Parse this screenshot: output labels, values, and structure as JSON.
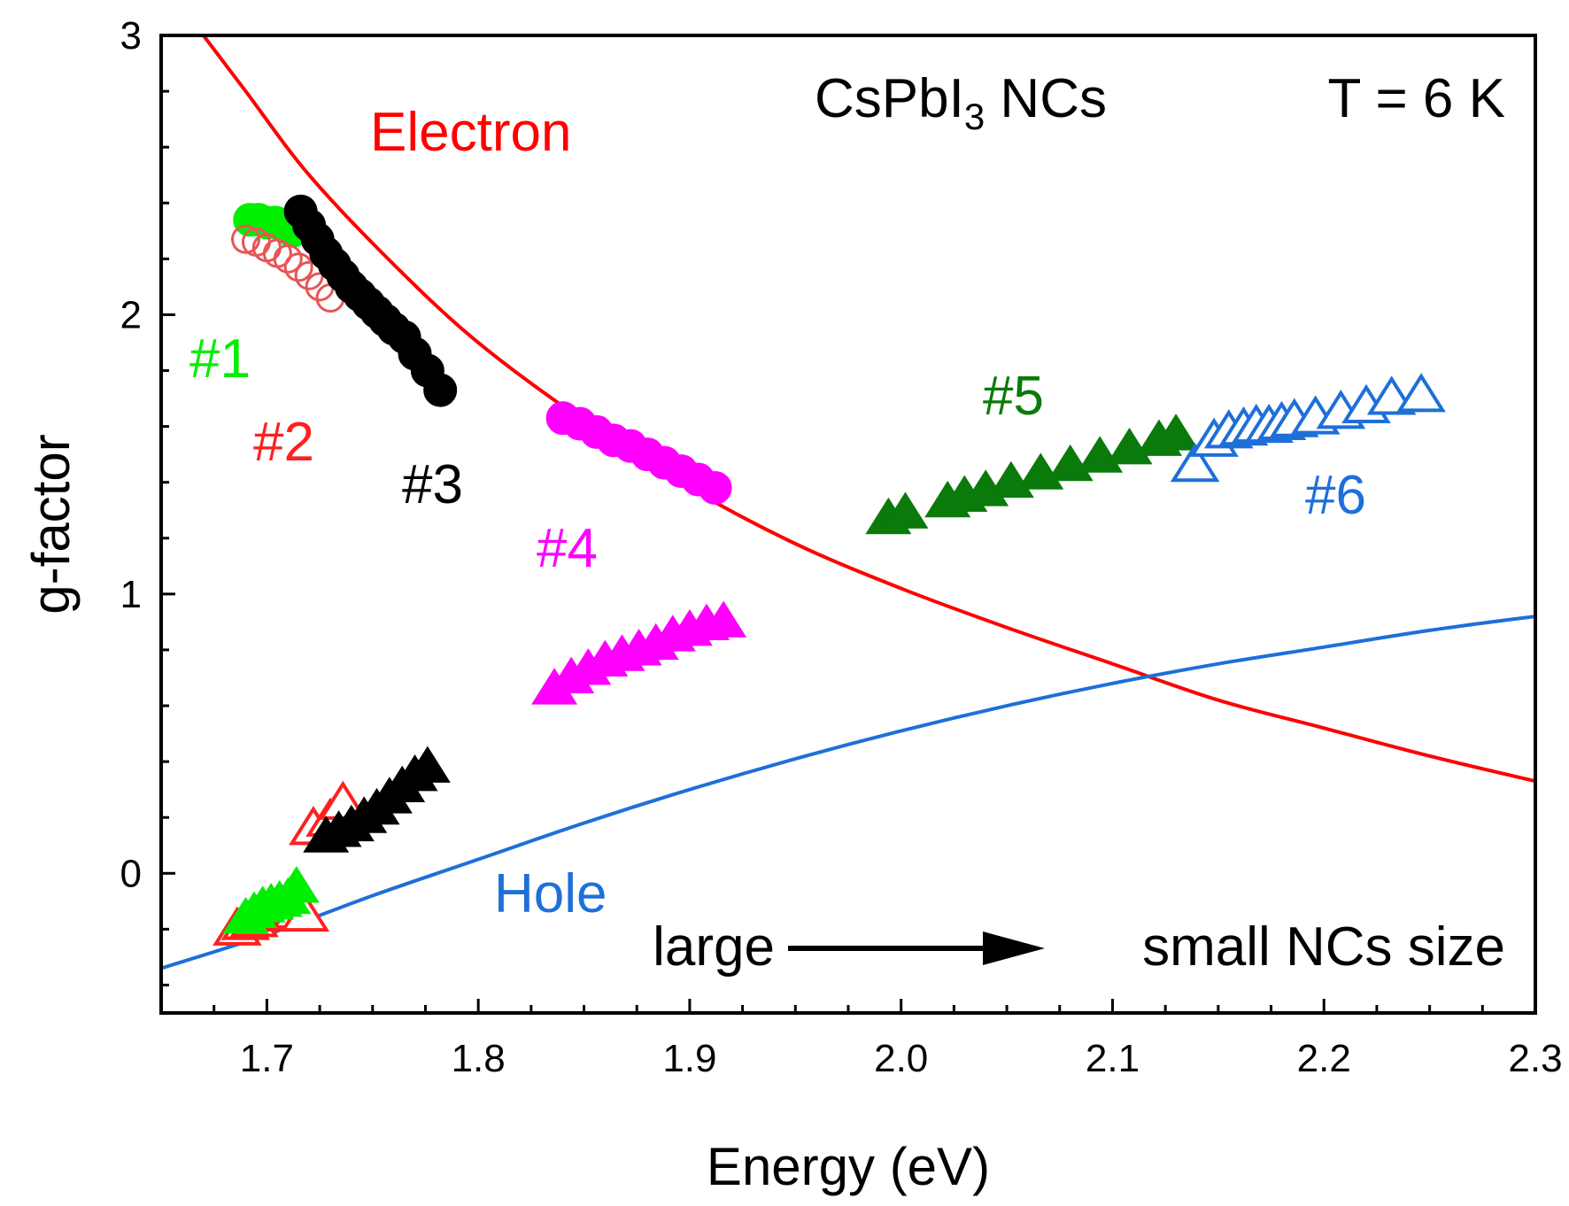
{
  "chart_data": {
    "type": "scatter",
    "title": "",
    "xlabel": "Energy (eV)",
    "ylabel": "g-factor",
    "xlim": [
      1.65,
      2.3
    ],
    "ylim": [
      -0.5,
      3.0
    ],
    "xticks": [
      1.7,
      1.8,
      1.9,
      2.0,
      2.1,
      2.2,
      2.3
    ],
    "xtick_labels": [
      "1.7",
      "1.8",
      "1.9",
      "2.0",
      "2.1",
      "2.2",
      "2.3"
    ],
    "yticks": [
      0,
      1,
      2,
      3
    ],
    "ytick_labels": [
      "0",
      "1",
      "2",
      "3"
    ],
    "grid": false,
    "colors": {
      "electron_curve": "#ff0000",
      "hole_curve": "#1e6fd9",
      "s1": "#00ee00",
      "s2": "#ff2020",
      "s2_open": "#e85555",
      "s3": "#000000",
      "s4": "#ff00ff",
      "s5": "#0a7a0a",
      "s6": "#1e6fd9"
    },
    "annotations": {
      "sample": "CsPbI",
      "sample_sub": "3",
      "sample_suffix": " NCs",
      "temperature": "T = 6 K",
      "electron": "Electron",
      "hole": "Hole",
      "size_left": "large",
      "size_right": "small NCs size",
      "label_1": "#1",
      "label_2": "#2",
      "label_3": "#3",
      "label_4": "#4",
      "label_5": "#5",
      "label_6": "#6"
    },
    "curves": [
      {
        "name": "Electron",
        "x": [
          1.67,
          1.69,
          1.72,
          1.76,
          1.8,
          1.85,
          1.9,
          1.95,
          2.0,
          2.05,
          2.1,
          2.15,
          2.2,
          2.25,
          2.3
        ],
        "y": [
          3.0,
          2.8,
          2.5,
          2.18,
          1.9,
          1.62,
          1.38,
          1.18,
          1.02,
          0.88,
          0.75,
          0.62,
          0.52,
          0.42,
          0.33
        ]
      },
      {
        "name": "Hole",
        "x": [
          1.65,
          1.7,
          1.75,
          1.8,
          1.85,
          1.9,
          1.95,
          2.0,
          2.05,
          2.1,
          2.15,
          2.2,
          2.25,
          2.3
        ],
        "y": [
          -0.34,
          -0.22,
          -0.08,
          0.05,
          0.18,
          0.3,
          0.41,
          0.51,
          0.6,
          0.68,
          0.75,
          0.81,
          0.87,
          0.92
        ]
      }
    ],
    "series": [
      {
        "name": "#1 electron",
        "marker": "circle",
        "filled": true,
        "color": "s1",
        "x": [
          1.692,
          1.696,
          1.7,
          1.704,
          1.708,
          1.712
        ],
        "y": [
          2.34,
          2.34,
          2.33,
          2.33,
          2.32,
          2.3
        ]
      },
      {
        "name": "#2 electron",
        "marker": "circle",
        "filled": false,
        "color": "s2_open",
        "x": [
          1.69,
          1.695,
          1.7,
          1.705,
          1.71,
          1.715,
          1.72,
          1.725,
          1.73
        ],
        "y": [
          2.27,
          2.26,
          2.24,
          2.22,
          2.2,
          2.17,
          2.14,
          2.1,
          2.06
        ]
      },
      {
        "name": "#3 electron",
        "marker": "circle",
        "filled": true,
        "color": "s3",
        "x": [
          1.716,
          1.72,
          1.724,
          1.728,
          1.732,
          1.736,
          1.74,
          1.744,
          1.748,
          1.752,
          1.756,
          1.76,
          1.765,
          1.77,
          1.776,
          1.782
        ],
        "y": [
          2.37,
          2.32,
          2.27,
          2.22,
          2.18,
          2.14,
          2.1,
          2.07,
          2.04,
          2.01,
          1.98,
          1.95,
          1.92,
          1.86,
          1.8,
          1.73
        ]
      },
      {
        "name": "#4 electron",
        "marker": "circle",
        "filled": true,
        "color": "s4",
        "x": [
          1.84,
          1.848,
          1.856,
          1.864,
          1.872,
          1.88,
          1.888,
          1.896,
          1.904,
          1.912
        ],
        "y": [
          1.63,
          1.61,
          1.58,
          1.55,
          1.53,
          1.5,
          1.47,
          1.44,
          1.41,
          1.38
        ]
      },
      {
        "name": "#4 hole",
        "marker": "triangle",
        "filled": true,
        "color": "s4",
        "x": [
          1.836,
          1.844,
          1.852,
          1.86,
          1.868,
          1.876,
          1.884,
          1.892,
          1.9,
          1.908,
          1.916
        ],
        "y": [
          0.66,
          0.7,
          0.73,
          0.76,
          0.78,
          0.8,
          0.82,
          0.85,
          0.87,
          0.89,
          0.9
        ]
      },
      {
        "name": "#2 hole",
        "marker": "triangle",
        "filled": false,
        "color": "s2",
        "x": [
          1.686,
          1.69,
          1.694,
          1.698,
          1.702,
          1.706,
          1.71,
          1.714,
          1.718,
          1.722,
          1.73,
          1.736
        ],
        "y": [
          -0.2,
          -0.18,
          -0.17,
          -0.15,
          -0.14,
          -0.13,
          -0.12,
          -0.14,
          -0.15,
          0.16,
          0.19,
          0.25
        ]
      },
      {
        "name": "#3 hole",
        "marker": "triangle",
        "filled": true,
        "color": "s3",
        "x": [
          1.728,
          1.734,
          1.74,
          1.746,
          1.752,
          1.758,
          1.764,
          1.77,
          1.776
        ],
        "y": [
          0.13,
          0.15,
          0.17,
          0.2,
          0.23,
          0.27,
          0.31,
          0.35,
          0.38
        ]
      },
      {
        "name": "#1 hole",
        "marker": "triangle",
        "filled": true,
        "color": "s1",
        "x": [
          1.69,
          1.694,
          1.698,
          1.702,
          1.706,
          1.71,
          1.714
        ],
        "y": [
          -0.16,
          -0.14,
          -0.12,
          -0.11,
          -0.1,
          -0.09,
          -0.05
        ]
      },
      {
        "name": "#5",
        "marker": "triangle",
        "filled": true,
        "color": "s5",
        "x": [
          1.994,
          2.002,
          2.022,
          2.03,
          2.04,
          2.052,
          2.066,
          2.08,
          2.094,
          2.108,
          2.122,
          2.13
        ],
        "y": [
          1.27,
          1.29,
          1.33,
          1.35,
          1.37,
          1.4,
          1.43,
          1.46,
          1.49,
          1.52,
          1.55,
          1.57
        ]
      },
      {
        "name": "#6",
        "marker": "triangle",
        "filled": false,
        "color": "s6",
        "x": [
          2.139,
          2.148,
          2.155,
          2.162,
          2.168,
          2.174,
          2.18,
          2.186,
          2.196,
          2.208,
          2.22,
          2.232,
          2.246
        ],
        "y": [
          1.46,
          1.55,
          1.58,
          1.59,
          1.6,
          1.6,
          1.61,
          1.62,
          1.63,
          1.65,
          1.67,
          1.7,
          1.71
        ]
      }
    ]
  }
}
